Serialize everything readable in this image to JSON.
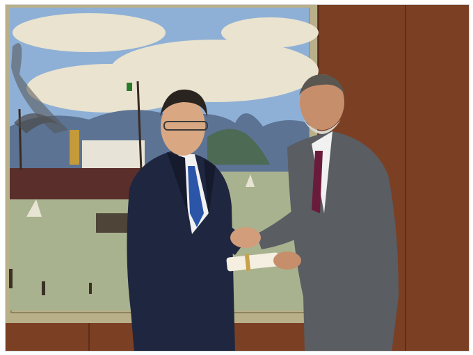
{
  "scene": {
    "wall_color": "#7b3f24",
    "wall_dark": "#5e2d18",
    "frame_color": "#b9b08a",
    "sky_color": "#8fb0d6",
    "cloud_color": "#e9e3cf",
    "mountain_color": "#5c7394",
    "sea_color": "#a9b28e",
    "ship_hull": "#5a2e2a",
    "suit_left": "#1f2640",
    "suit_right": "#5a5d62",
    "tie_left": "#2b55a8",
    "tie_right": "#6a1b3c",
    "gift_color": "#f4efe0"
  }
}
